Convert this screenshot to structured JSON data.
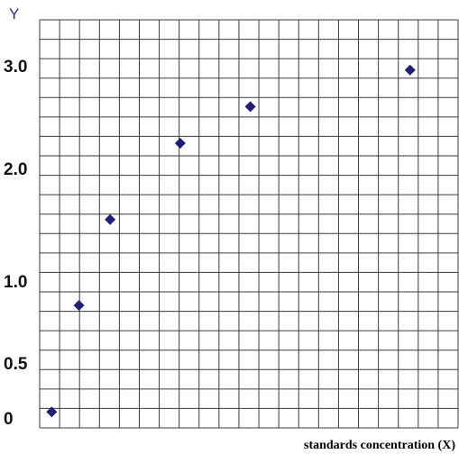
{
  "chart_data": {
    "type": "scatter",
    "ylabel": "Y",
    "xlabel": "standards concentration (X)",
    "ytick_labels": [
      "3.0",
      "2.0",
      "1.0",
      "0.5",
      "0"
    ],
    "grid": true,
    "marker_color": "#1f1f7a",
    "grid_color": "#3a3a3a",
    "points": [
      {
        "x": 0.1,
        "y": 0.1
      },
      {
        "x": 0.8,
        "y": 0.85
      },
      {
        "x": 1.6,
        "y": 1.55
      },
      {
        "x": 3.4,
        "y": 2.25
      },
      {
        "x": 5.2,
        "y": 2.6
      },
      {
        "x": 9.3,
        "y": 2.95
      }
    ]
  }
}
